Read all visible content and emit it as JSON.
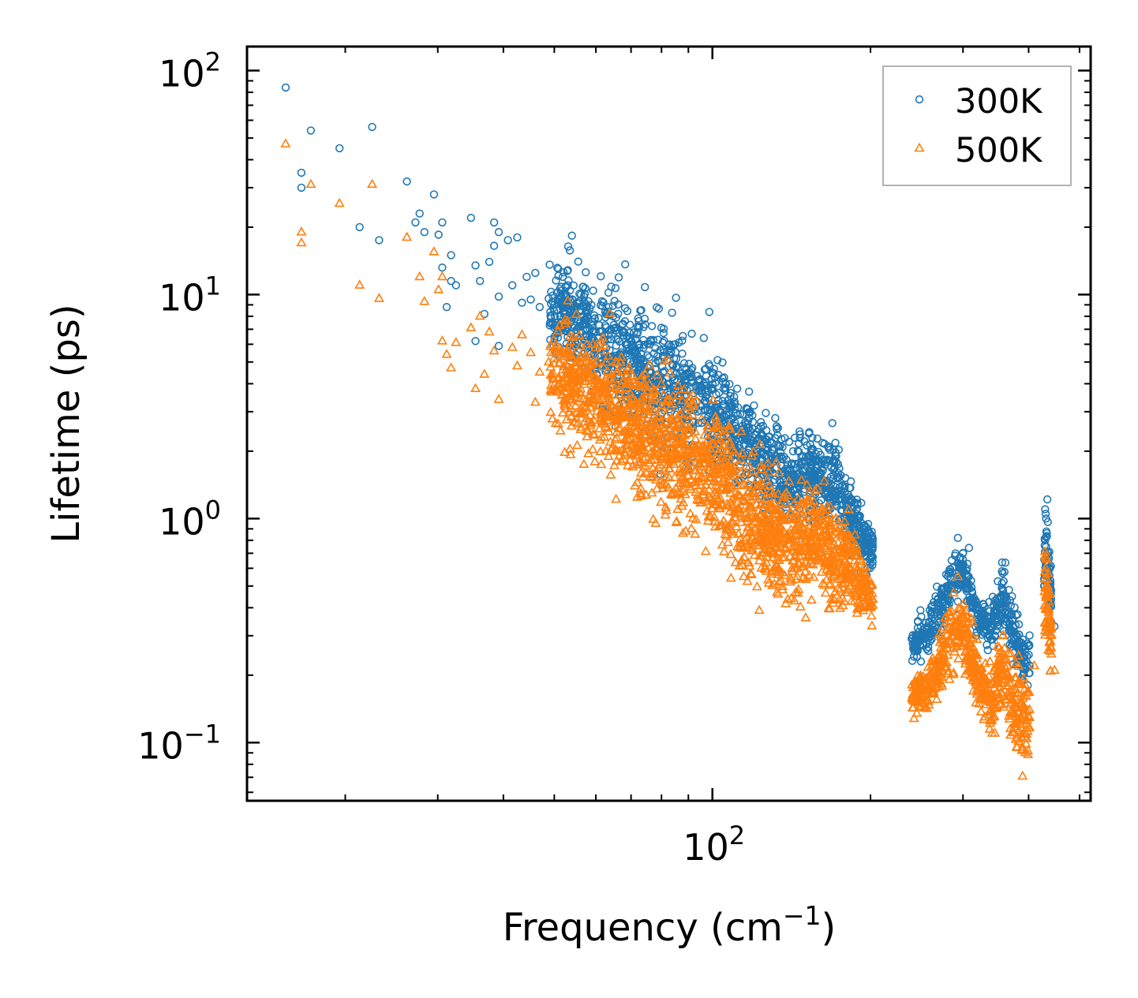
{
  "chart_data": {
    "type": "scatter",
    "xscale": "log",
    "yscale": "log",
    "xlim": [
      13,
      525
    ],
    "ylim": [
      0.055,
      128
    ],
    "xlabel": "Frequency (cm",
    "xlabel_sup": "−1",
    "xlabel_end": ")",
    "ylabel": "Lifetime (ps)",
    "x_major_ticks": [
      {
        "value": 100,
        "base": "10",
        "exp": "2"
      }
    ],
    "y_major_ticks": [
      {
        "value": 0.1,
        "base": "10",
        "exp": "−1"
      },
      {
        "value": 1,
        "base": "10",
        "exp": "0"
      },
      {
        "value": 10,
        "base": "10",
        "exp": "1"
      },
      {
        "value": 100,
        "base": "10",
        "exp": "2"
      }
    ],
    "legend": {
      "placement": "top-right"
    },
    "series": [
      {
        "name": "300K",
        "marker": "circle",
        "color": "#1f77b4",
        "points": [
          [
            15.4,
            84
          ],
          [
            16.5,
            35
          ],
          [
            16.5,
            30
          ],
          [
            17.2,
            54
          ],
          [
            19.5,
            45
          ],
          [
            21.3,
            20
          ],
          [
            22.5,
            56
          ],
          [
            23.2,
            17.5
          ],
          [
            26.2,
            32
          ],
          [
            27.2,
            21
          ],
          [
            27.7,
            23
          ],
          [
            28.3,
            19
          ],
          [
            29.5,
            28
          ],
          [
            30.1,
            18.5
          ],
          [
            30.6,
            21
          ],
          [
            30.6,
            13.2
          ],
          [
            31.2,
            8.8
          ],
          [
            31.8,
            11.5
          ],
          [
            31.8,
            15
          ],
          [
            32.5,
            11
          ],
          [
            34.7,
            22
          ],
          [
            35.4,
            13.5
          ],
          [
            35.4,
            6.2
          ],
          [
            36.1,
            11.5
          ],
          [
            36.8,
            8.2
          ],
          [
            37.6,
            14
          ],
          [
            38.4,
            21
          ],
          [
            38.4,
            16.5
          ],
          [
            39.2,
            19
          ],
          [
            39.2,
            9.8
          ],
          [
            39.2,
            5.9
          ],
          [
            40.8,
            17.5
          ],
          [
            42.5,
            18
          ],
          [
            41.6,
            11
          ],
          [
            43.4,
            9.2
          ],
          [
            44.3,
            12
          ],
          [
            45.1,
            9.5
          ],
          [
            46,
            12.5
          ],
          [
            46.9,
            8.8
          ],
          [
            48.8,
            9.6
          ],
          [
            50.9,
            13
          ],
          [
            51.9,
            12
          ],
          [
            53,
            9.3
          ],
          [
            56.2,
            10
          ],
          [
            57.4,
            8.4
          ],
          [
            58.5,
            7
          ],
          [
            60.9,
            7.3
          ],
          [
            63.4,
            10.2
          ],
          [
            64.7,
            8
          ],
          [
            67.4,
            6.8
          ],
          [
            70.1,
            6.2
          ],
          [
            74.4,
            10.8
          ],
          [
            80.5,
            6.1
          ],
          [
            83.8,
            8.3
          ],
          [
            86.3,
            6.1
          ],
          [
            91.2,
            4.6
          ],
          [
            96.3,
            6.4
          ],
          [
            98.5,
            4.9
          ],
          [
            102.3,
            5.1
          ],
          [
            105,
            3.8
          ],
          [
            110,
            3.5
          ],
          [
            120,
            3.2
          ],
          [
            140,
            2.2
          ],
          [
            152.7,
            2.4
          ],
          [
            166.4,
            2.1
          ],
          [
            172,
            1.9
          ],
          [
            181.5,
            1.25
          ],
          [
            188.2,
            1.1
          ],
          [
            202,
            0.75
          ],
          [
            240.6,
            0.3
          ],
          [
            245,
            0.26
          ],
          [
            275,
            0.45
          ],
          [
            293.4,
            0.82
          ],
          [
            300,
            0.7
          ],
          [
            307.9,
            0.74
          ],
          [
            330,
            0.33
          ],
          [
            357,
            0.57
          ],
          [
            367,
            0.48
          ],
          [
            380,
            0.3
          ],
          [
            394,
            0.26
          ],
          [
            401,
            0.27
          ],
          [
            430,
            1.1
          ],
          [
            431,
            1.05
          ],
          [
            432,
            1.0
          ],
          [
            433,
            0.86
          ],
          [
            440,
            0.42
          ],
          [
            448,
            0.33
          ]
        ]
      },
      {
        "name": "500K",
        "marker": "triangle",
        "color": "#ff7f0e",
        "points": [
          [
            15.4,
            47
          ],
          [
            16.5,
            19
          ],
          [
            16.5,
            17
          ],
          [
            17.2,
            31
          ],
          [
            19.5,
            25.5
          ],
          [
            21.3,
            11
          ],
          [
            22.5,
            31
          ],
          [
            23.2,
            9.6
          ],
          [
            26.2,
            18
          ],
          [
            27.7,
            12
          ],
          [
            28.3,
            9.3
          ],
          [
            29.5,
            15.5
          ],
          [
            30.1,
            10.5
          ],
          [
            30.6,
            12
          ],
          [
            30.6,
            6.2
          ],
          [
            31.2,
            5.4
          ],
          [
            31.8,
            4.7
          ],
          [
            32.5,
            6.1
          ],
          [
            34.7,
            7.1
          ],
          [
            35.4,
            3.8
          ],
          [
            36.1,
            8
          ],
          [
            36.8,
            4.4
          ],
          [
            37.6,
            6.8
          ],
          [
            38.4,
            5.6
          ],
          [
            39.2,
            3.4
          ],
          [
            41.6,
            5.8
          ],
          [
            42.5,
            4.8
          ],
          [
            43.4,
            6.6
          ],
          [
            45.1,
            5.5
          ],
          [
            46,
            3.3
          ],
          [
            46.9,
            4.5
          ],
          [
            48.8,
            5
          ],
          [
            50.9,
            5.5
          ],
          [
            53,
            4.2
          ],
          [
            57.4,
            4.8
          ],
          [
            60.9,
            4.1
          ],
          [
            63.4,
            5.3
          ],
          [
            67.4,
            4.1
          ],
          [
            72.5,
            3.9
          ],
          [
            80.5,
            3.1
          ],
          [
            86.3,
            2.6
          ],
          [
            91.2,
            2.1
          ],
          [
            99.6,
            1.6
          ],
          [
            105,
            1.7
          ],
          [
            112,
            1.1
          ],
          [
            118,
            0.8
          ],
          [
            124,
            0.6
          ],
          [
            136,
            0.48
          ],
          [
            145,
            0.55
          ],
          [
            152.7,
            1.3
          ],
          [
            166.4,
            0.62
          ],
          [
            172,
            0.58
          ],
          [
            188.2,
            0.45
          ],
          [
            202,
            0.41
          ],
          [
            240.6,
            0.155
          ],
          [
            245,
            0.135
          ],
          [
            260,
            0.19
          ],
          [
            275,
            0.25
          ],
          [
            293.4,
            0.55
          ],
          [
            300,
            0.36
          ],
          [
            307.9,
            0.3
          ],
          [
            330,
            0.13
          ],
          [
            345,
            0.11
          ],
          [
            357,
            0.3
          ],
          [
            367,
            0.16
          ],
          [
            380,
            0.095
          ],
          [
            394,
            0.09
          ],
          [
            401,
            0.13
          ],
          [
            410,
            0.22
          ],
          [
            430,
            0.68
          ],
          [
            431,
            0.6
          ],
          [
            432,
            0.5
          ],
          [
            433,
            0.45
          ],
          [
            440,
            0.3
          ],
          [
            448,
            0.21
          ]
        ]
      }
    ],
    "dense_bands": [
      {
        "series": "300K",
        "seed": 11,
        "count": 1600,
        "anchors": [
          [
            49,
            8.6,
            0.18
          ],
          [
            57.4,
            7.2,
            0.2
          ],
          [
            66,
            5.5,
            0.24
          ],
          [
            76,
            4.6,
            0.25
          ],
          [
            89,
            3.5,
            0.23
          ],
          [
            100,
            3.0,
            0.21
          ],
          [
            112,
            2.3,
            0.2
          ],
          [
            128,
            1.75,
            0.19
          ],
          [
            145,
            1.45,
            0.18
          ],
          [
            158,
            1.55,
            0.17
          ],
          [
            170,
            1.45,
            0.17
          ],
          [
            182,
            1.05,
            0.15
          ],
          [
            202,
            0.72,
            0.08
          ]
        ]
      },
      {
        "series": "300K",
        "seed": 23,
        "count": 500,
        "anchors": [
          [
            239,
            0.27,
            0.06
          ],
          [
            260,
            0.33,
            0.09
          ],
          [
            285,
            0.52,
            0.1
          ],
          [
            300,
            0.6,
            0.08
          ],
          [
            318,
            0.37,
            0.08
          ],
          [
            340,
            0.33,
            0.08
          ],
          [
            356,
            0.46,
            0.1
          ],
          [
            372,
            0.33,
            0.1
          ],
          [
            395,
            0.22,
            0.09
          ],
          [
            402,
            0.24,
            0.08
          ]
        ]
      },
      {
        "series": "300K",
        "seed": 29,
        "count": 60,
        "anchors": [
          [
            428,
            0.65,
            0.16
          ],
          [
            434,
            0.68,
            0.16
          ],
          [
            442,
            0.45,
            0.12
          ]
        ]
      },
      {
        "series": "500K",
        "seed": 37,
        "count": 1700,
        "anchors": [
          [
            49,
            4.4,
            0.2
          ],
          [
            57.4,
            3.7,
            0.24
          ],
          [
            66,
            2.9,
            0.26
          ],
          [
            76,
            2.3,
            0.26
          ],
          [
            89,
            1.85,
            0.26
          ],
          [
            100,
            1.6,
            0.26
          ],
          [
            112,
            1.15,
            0.26
          ],
          [
            128,
            0.85,
            0.22
          ],
          [
            145,
            0.75,
            0.22
          ],
          [
            158,
            0.85,
            0.2
          ],
          [
            170,
            0.7,
            0.2
          ],
          [
            182,
            0.6,
            0.18
          ],
          [
            202,
            0.42,
            0.08
          ]
        ]
      },
      {
        "series": "500K",
        "seed": 41,
        "count": 560,
        "anchors": [
          [
            239,
            0.155,
            0.06
          ],
          [
            260,
            0.18,
            0.11
          ],
          [
            285,
            0.3,
            0.14
          ],
          [
            300,
            0.32,
            0.13
          ],
          [
            318,
            0.2,
            0.12
          ],
          [
            340,
            0.14,
            0.12
          ],
          [
            356,
            0.22,
            0.15
          ],
          [
            372,
            0.15,
            0.15
          ],
          [
            395,
            0.13,
            0.16
          ],
          [
            402,
            0.12,
            0.16
          ]
        ]
      },
      {
        "series": "500K",
        "seed": 43,
        "count": 60,
        "anchors": [
          [
            428,
            0.4,
            0.2
          ],
          [
            434,
            0.42,
            0.22
          ],
          [
            442,
            0.28,
            0.14
          ]
        ]
      }
    ]
  }
}
